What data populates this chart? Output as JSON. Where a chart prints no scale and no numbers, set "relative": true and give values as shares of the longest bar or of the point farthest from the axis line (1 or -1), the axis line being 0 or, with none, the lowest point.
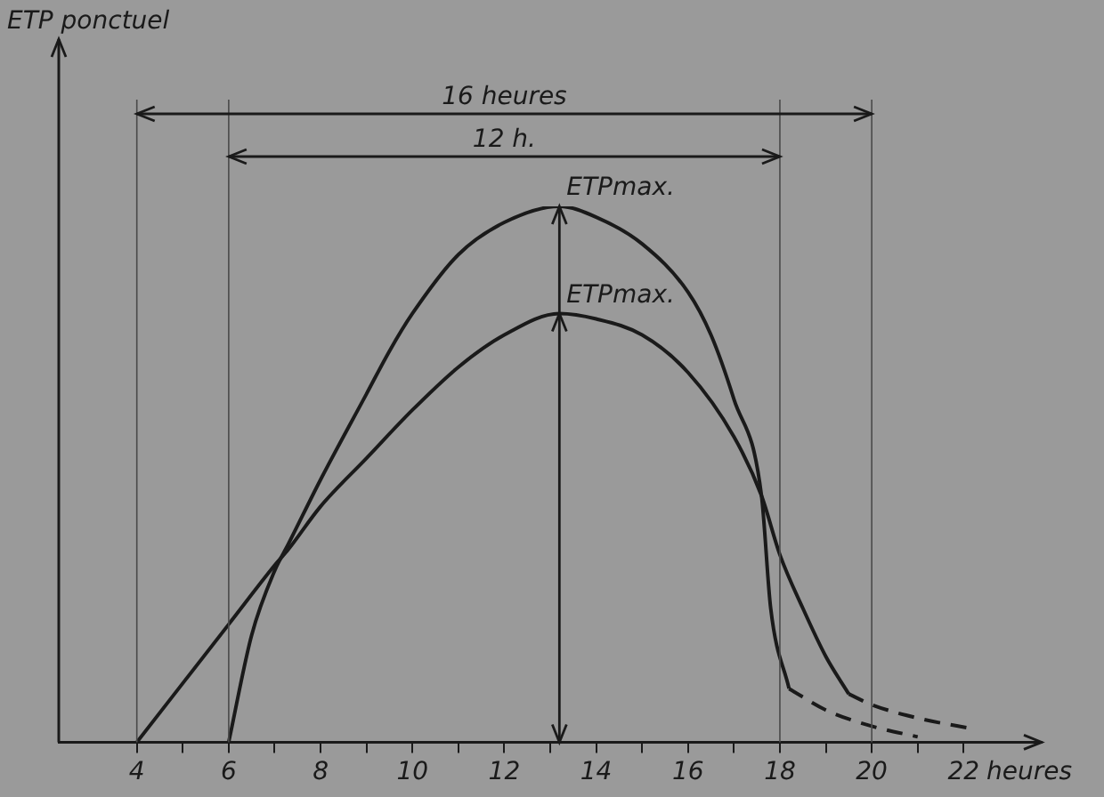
{
  "chart_data": {
    "type": "line",
    "relative": true,
    "xlabel": "heures",
    "xlim": [
      2.3,
      23.7
    ],
    "xticks": [
      4,
      {
        "value": 5,
        "label": null
      },
      6,
      {
        "value": 7,
        "label": null
      },
      8,
      {
        "value": 9,
        "label": null
      },
      10,
      {
        "value": 11,
        "label": null
      },
      12,
      {
        "value": 13,
        "label": null
      },
      14,
      {
        "value": 15,
        "label": null
      },
      16,
      {
        "value": 17,
        "label": null
      },
      18,
      {
        "value": 19,
        "label": null
      },
      20,
      {
        "value": 21,
        "label": null
      },
      22
    ],
    "series": [
      {
        "color": "#1a1a1a",
        "line_style": "solid",
        "x": [
          6,
          6.5,
          7,
          7.3,
          8,
          9,
          9.5,
          10,
          11,
          12,
          13.2,
          14,
          15,
          16,
          16.5,
          17,
          17.6,
          17.8,
          18.2
        ],
        "values": [
          0,
          0.2,
          0.32,
          0.37,
          0.49,
          0.65,
          0.73,
          0.8,
          0.91,
          0.97,
          1,
          0.98,
          0.93,
          0.84,
          0.76,
          0.64,
          0.46,
          0.25,
          0.1
        ]
      },
      {
        "color": "#1a1a1a",
        "line_style": "dashed",
        "x": [
          18.2,
          19,
          20,
          21
        ],
        "values": [
          0.1,
          0.06,
          0.03,
          0.01
        ]
      },
      {
        "color": "#1a1a1a",
        "line_style": "solid",
        "x": [
          4,
          5,
          6,
          7,
          7.3,
          8,
          9,
          10,
          11,
          12,
          13.2,
          14,
          15,
          16,
          17,
          17.6,
          18,
          18.5,
          19,
          19.5
        ],
        "values": [
          0,
          0.11,
          0.22,
          0.33,
          0.36,
          0.44,
          0.53,
          0.62,
          0.7,
          0.76,
          0.8,
          0.79,
          0.76,
          0.69,
          0.57,
          0.46,
          0.35,
          0.25,
          0.16,
          0.09
        ]
      },
      {
        "color": "#1a1a1a",
        "line_style": "dashed",
        "x": [
          19.5,
          20,
          21,
          22.2
        ],
        "values": [
          0.09,
          0.07,
          0.045,
          0.025
        ]
      }
    ],
    "ref_lines": [
      {
        "axis": "x",
        "value": 4,
        "color": "#4a4a4a"
      },
      {
        "axis": "x",
        "value": 6,
        "color": "#4a4a4a"
      },
      {
        "axis": "x",
        "value": 18,
        "color": "#4a4a4a"
      },
      {
        "axis": "x",
        "value": 20,
        "color": "#4a4a4a"
      },
      {
        "axis": "x",
        "value": 13.2,
        "color": "#1a1a1a"
      }
    ],
    "annotations": [
      "ETP ponctuel",
      "16 heures",
      "12 h.",
      {
        "text": "ETPmax.",
        "x": 13.2,
        "y": 1
      },
      {
        "text": "ETPmax.",
        "x": 13.2,
        "y": 0.8
      }
    ],
    "grid": false,
    "legend": false,
    "marker": "none"
  }
}
